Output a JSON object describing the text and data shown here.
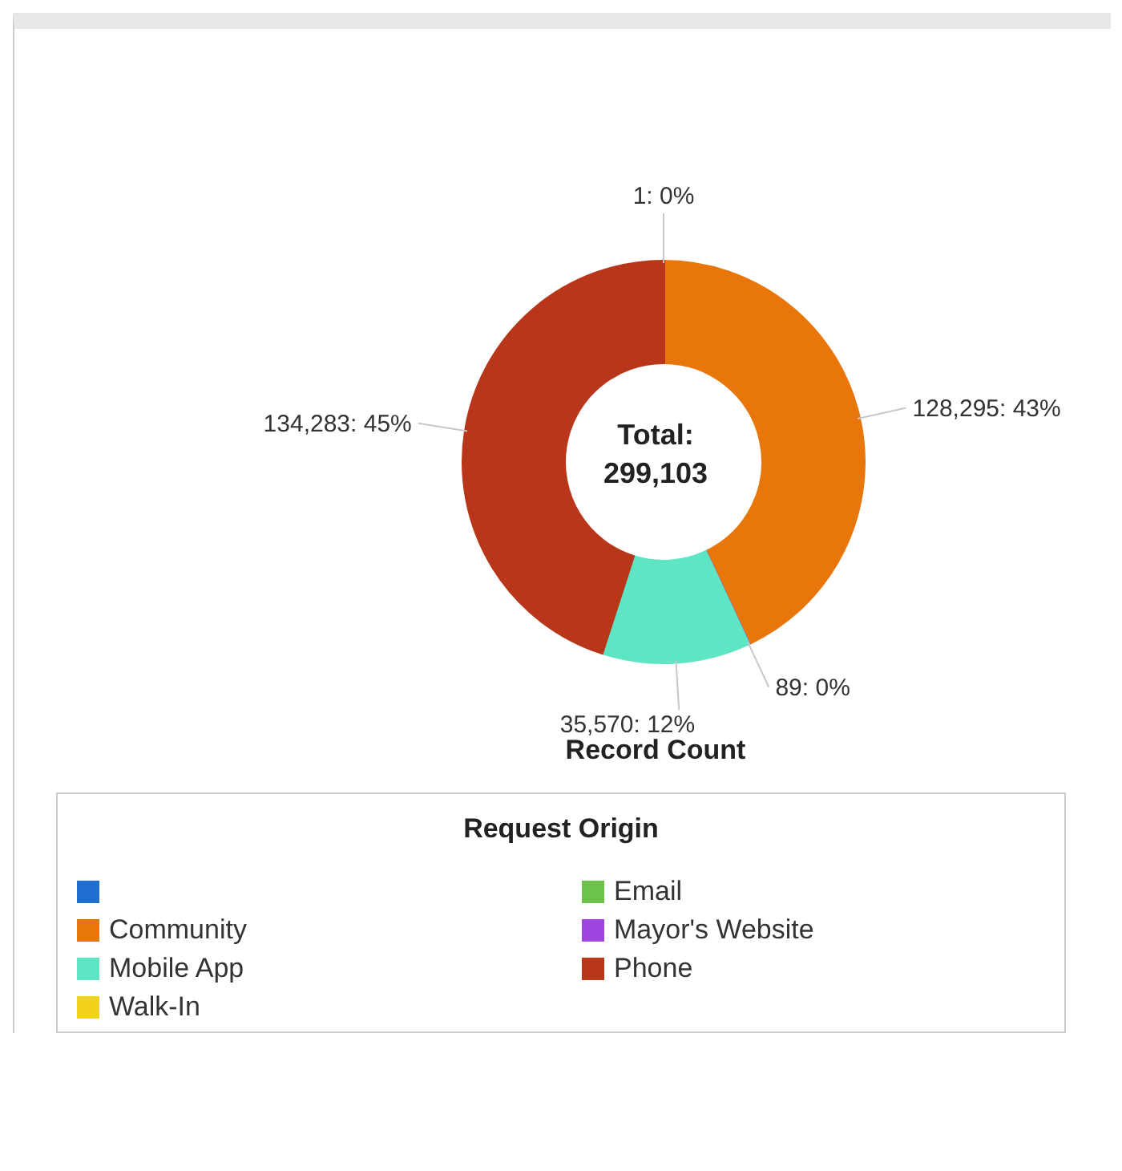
{
  "chart_data": {
    "type": "donut",
    "xlabel": "Record Count",
    "legend_title": "Request Origin",
    "legend": "bottom",
    "categories": [
      null,
      "Email",
      "Community",
      "Mayor's Website",
      "Mobile App",
      "Phone",
      "Walk-In"
    ],
    "values": [
      1,
      null,
      128295,
      89,
      35570,
      134283,
      null
    ],
    "value_labels": [
      "1: 0%",
      null,
      "128,295: 43%",
      "89: 0%",
      "35,570: 12%",
      "134,283: 45%",
      null
    ],
    "colors": [
      "#1f6fd0",
      "#6cc24a",
      "#e8760a",
      "#a046e0",
      "#5ee6c4",
      "#b8361a",
      "#f2d21b"
    ],
    "annotations": [
      "Total:\n299,103"
    ]
  }
}
